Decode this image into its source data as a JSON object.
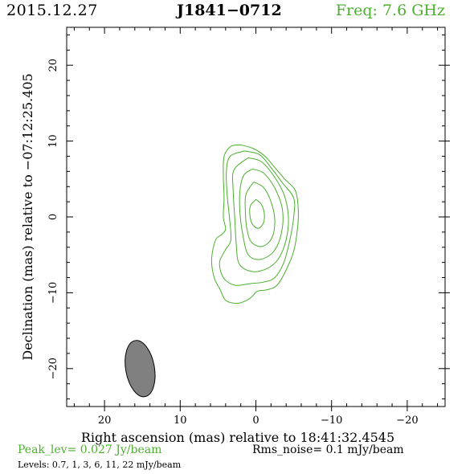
{
  "header": {
    "date": "2015.12.27",
    "source": "J1841−0712",
    "frequency": "Freq: 7.6 GHz"
  },
  "chart_data": {
    "type": "contour",
    "xlabel": "Right ascension (mas) relative to 18:41:32.4545",
    "ylabel": "Declination (mas) relative to −07:12:25.405",
    "xlim": [
      25,
      -25
    ],
    "ylim": [
      -25,
      25
    ],
    "xticks": [
      20,
      10,
      0,
      -10,
      -20
    ],
    "yticks": [
      20,
      10,
      0,
      -10,
      -20
    ],
    "xtick_labels": [
      "20",
      "10",
      "0",
      "−10",
      "−20"
    ],
    "ytick_labels": [
      "20",
      "10",
      "0",
      "−10",
      "−20"
    ],
    "contour_color": "#4caf2f",
    "beam_color": "#808080",
    "beam": {
      "center": [
        15.3,
        -20
      ],
      "major_mas": 7.5,
      "minor_mas": 3.8,
      "pa_deg": -10
    },
    "contours": [
      {
        "level": "0.7",
        "points": [
          [
            2.0,
            9.5
          ],
          [
            0.3,
            9.0
          ],
          [
            -1.2,
            8.0
          ],
          [
            -2.5,
            6.5
          ],
          [
            -3.8,
            5.0
          ],
          [
            -5.2,
            3.5
          ],
          [
            -5.6,
            1.0
          ],
          [
            -5.5,
            -1.5
          ],
          [
            -5.0,
            -4.5
          ],
          [
            -4.0,
            -7.0
          ],
          [
            -2.8,
            -9.0
          ],
          [
            -1.5,
            -9.6
          ],
          [
            -0.2,
            -9.8
          ],
          [
            0.5,
            -10.5
          ],
          [
            1.2,
            -11.0
          ],
          [
            2.5,
            -11.4
          ],
          [
            4.0,
            -11.0
          ],
          [
            4.7,
            -9.6
          ],
          [
            5.4,
            -8.3
          ],
          [
            5.8,
            -6.6
          ],
          [
            5.8,
            -5.0
          ],
          [
            5.3,
            -3.0
          ],
          [
            4.5,
            -2.3
          ],
          [
            4.0,
            -1.6
          ],
          [
            4.3,
            0.0
          ],
          [
            4.2,
            2.5
          ],
          [
            4.3,
            5.5
          ],
          [
            4.2,
            8.0
          ],
          [
            3.3,
            9.3
          ],
          [
            2.0,
            9.5
          ]
        ]
      },
      {
        "level": "1",
        "points": [
          [
            1.5,
            8.7
          ],
          [
            -0.5,
            8.2
          ],
          [
            -2.0,
            6.5
          ],
          [
            -3.5,
            4.5
          ],
          [
            -5.0,
            2.5
          ],
          [
            -5.0,
            0.0
          ],
          [
            -4.5,
            -3.0
          ],
          [
            -3.7,
            -6.0
          ],
          [
            -2.5,
            -8.0
          ],
          [
            -1.0,
            -8.6
          ],
          [
            0.8,
            -8.8
          ],
          [
            2.8,
            -9.0
          ],
          [
            4.3,
            -8.0
          ],
          [
            4.8,
            -6.0
          ],
          [
            4.0,
            -4.3
          ],
          [
            3.3,
            -3.0
          ],
          [
            3.5,
            0.0
          ],
          [
            3.8,
            3.0
          ],
          [
            3.9,
            6.0
          ],
          [
            3.4,
            8.0
          ],
          [
            1.5,
            8.7
          ]
        ]
      },
      {
        "level": "3",
        "points": [
          [
            1.0,
            7.8
          ],
          [
            -0.7,
            7.3
          ],
          [
            -2.3,
            5.5
          ],
          [
            -3.7,
            3.0
          ],
          [
            -4.3,
            0.0
          ],
          [
            -4.0,
            -3.0
          ],
          [
            -3.0,
            -5.5
          ],
          [
            -1.5,
            -6.8
          ],
          [
            0.5,
            -7.2
          ],
          [
            2.2,
            -6.2
          ],
          [
            2.6,
            -3.5
          ],
          [
            2.8,
            0.0
          ],
          [
            3.0,
            3.5
          ],
          [
            2.9,
            6.2
          ],
          [
            1.0,
            7.8
          ]
        ]
      },
      {
        "level": "6",
        "points": [
          [
            0.5,
            6.3
          ],
          [
            -1.0,
            5.8
          ],
          [
            -2.5,
            3.8
          ],
          [
            -3.5,
            1.0
          ],
          [
            -3.4,
            -2.0
          ],
          [
            -2.4,
            -4.5
          ],
          [
            -0.6,
            -5.6
          ],
          [
            1.0,
            -5.0
          ],
          [
            1.7,
            -2.5
          ],
          [
            2.1,
            0.5
          ],
          [
            2.1,
            3.5
          ],
          [
            1.6,
            5.5
          ],
          [
            0.5,
            6.3
          ]
        ]
      },
      {
        "level": "11",
        "points": [
          [
            0.3,
            4.6
          ],
          [
            -1.0,
            3.9
          ],
          [
            -2.0,
            2.0
          ],
          [
            -2.5,
            -0.5
          ],
          [
            -2.1,
            -2.8
          ],
          [
            -0.8,
            -3.9
          ],
          [
            0.6,
            -3.3
          ],
          [
            1.2,
            -1.5
          ],
          [
            1.4,
            1.0
          ],
          [
            1.3,
            3.0
          ],
          [
            0.3,
            4.6
          ]
        ]
      },
      {
        "level": "22",
        "points": [
          [
            0.0,
            2.3
          ],
          [
            -0.7,
            1.7
          ],
          [
            -1.1,
            0.5
          ],
          [
            -1.0,
            -0.8
          ],
          [
            -0.3,
            -1.5
          ],
          [
            0.5,
            -0.9
          ],
          [
            0.8,
            0.3
          ],
          [
            0.7,
            1.5
          ],
          [
            0.0,
            2.3
          ]
        ]
      }
    ]
  },
  "footer": {
    "peak": "Peak_lev=  0.027 Jy/beam",
    "rms": "Rms_noise=  0.1 mJy/beam",
    "levels": "Levels: 0.7,   1,   3,   6,   11,  22 mJy/beam"
  }
}
